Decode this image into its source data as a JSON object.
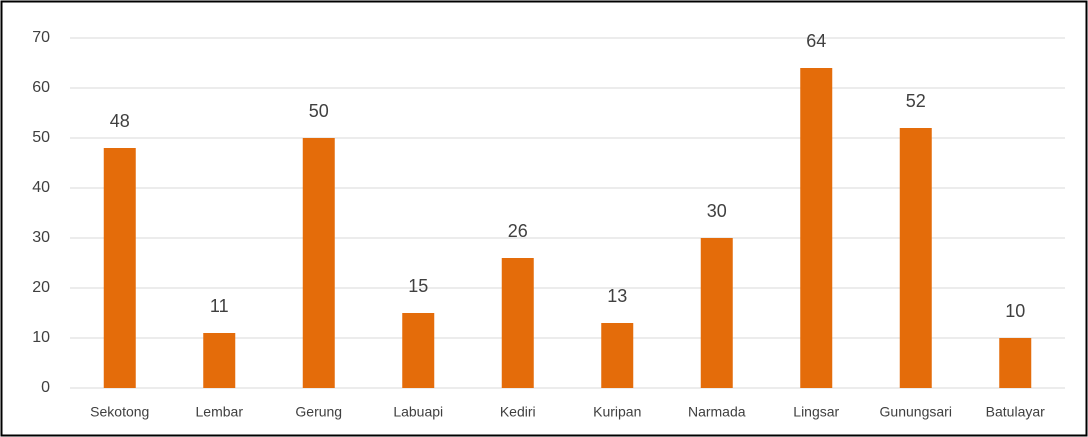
{
  "chart_data": {
    "type": "bar",
    "categories": [
      "Sekotong",
      "Lembar",
      "Gerung",
      "Labuapi",
      "Kediri",
      "Kuripan",
      "Narmada",
      "Lingsar",
      "Gunungsari",
      "Batulayar"
    ],
    "values": [
      48,
      11,
      50,
      15,
      26,
      13,
      30,
      64,
      52,
      10
    ],
    "color": "#e46c0a",
    "ylim": [
      0,
      70
    ],
    "yticks": [
      0,
      10,
      20,
      30,
      40,
      50,
      60,
      70
    ],
    "grid": true
  }
}
